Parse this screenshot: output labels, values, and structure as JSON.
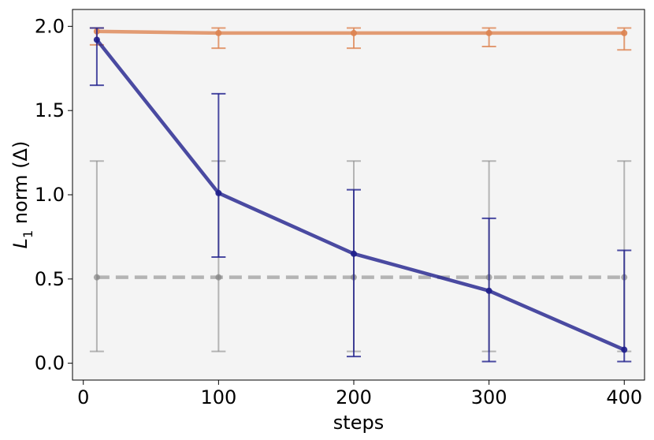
{
  "chart_data": {
    "type": "line",
    "xlabel": "steps",
    "ylabel_main": "L",
    "ylabel_sub": "1",
    "ylabel_rest": " norm (Δ)",
    "xlim": [
      -8,
      415
    ],
    "ylim": [
      -0.1,
      2.1
    ],
    "xticks": [
      0,
      100,
      200,
      300,
      400
    ],
    "xtick_labels": [
      "0",
      "100",
      "200",
      "300",
      "400"
    ],
    "yticks": [
      0.0,
      0.5,
      1.0,
      1.5,
      2.0
    ],
    "ytick_labels": [
      "0.0",
      "0.5",
      "1.0",
      "1.5",
      "2.0"
    ],
    "grid": false,
    "background": "#f4f4f4",
    "series": [
      {
        "color": "#808080",
        "style": "dashed",
        "x": [
          10,
          100,
          200,
          300,
          400
        ],
        "y": [
          0.51,
          0.51,
          0.51,
          0.51,
          0.51
        ],
        "err_low": [
          0.07,
          0.07,
          0.07,
          0.07,
          0.07
        ],
        "err_high": [
          1.2,
          1.2,
          1.2,
          1.2,
          1.2
        ]
      },
      {
        "color": "#dd8452",
        "style": "solid",
        "x": [
          10,
          100,
          200,
          300,
          400
        ],
        "y": [
          1.97,
          1.96,
          1.96,
          1.96,
          1.96
        ],
        "err_low": [
          1.89,
          1.87,
          1.87,
          1.88,
          1.86
        ],
        "err_high": [
          1.99,
          1.99,
          1.99,
          1.99,
          1.99
        ]
      },
      {
        "color": "#1f1f8c",
        "style": "solid",
        "x": [
          10,
          100,
          200,
          300,
          400
        ],
        "y": [
          1.92,
          1.01,
          0.65,
          0.43,
          0.08
        ],
        "err_low": [
          1.65,
          0.63,
          0.04,
          0.01,
          0.01
        ],
        "err_high": [
          1.99,
          1.6,
          1.03,
          0.86,
          0.67
        ]
      }
    ]
  }
}
